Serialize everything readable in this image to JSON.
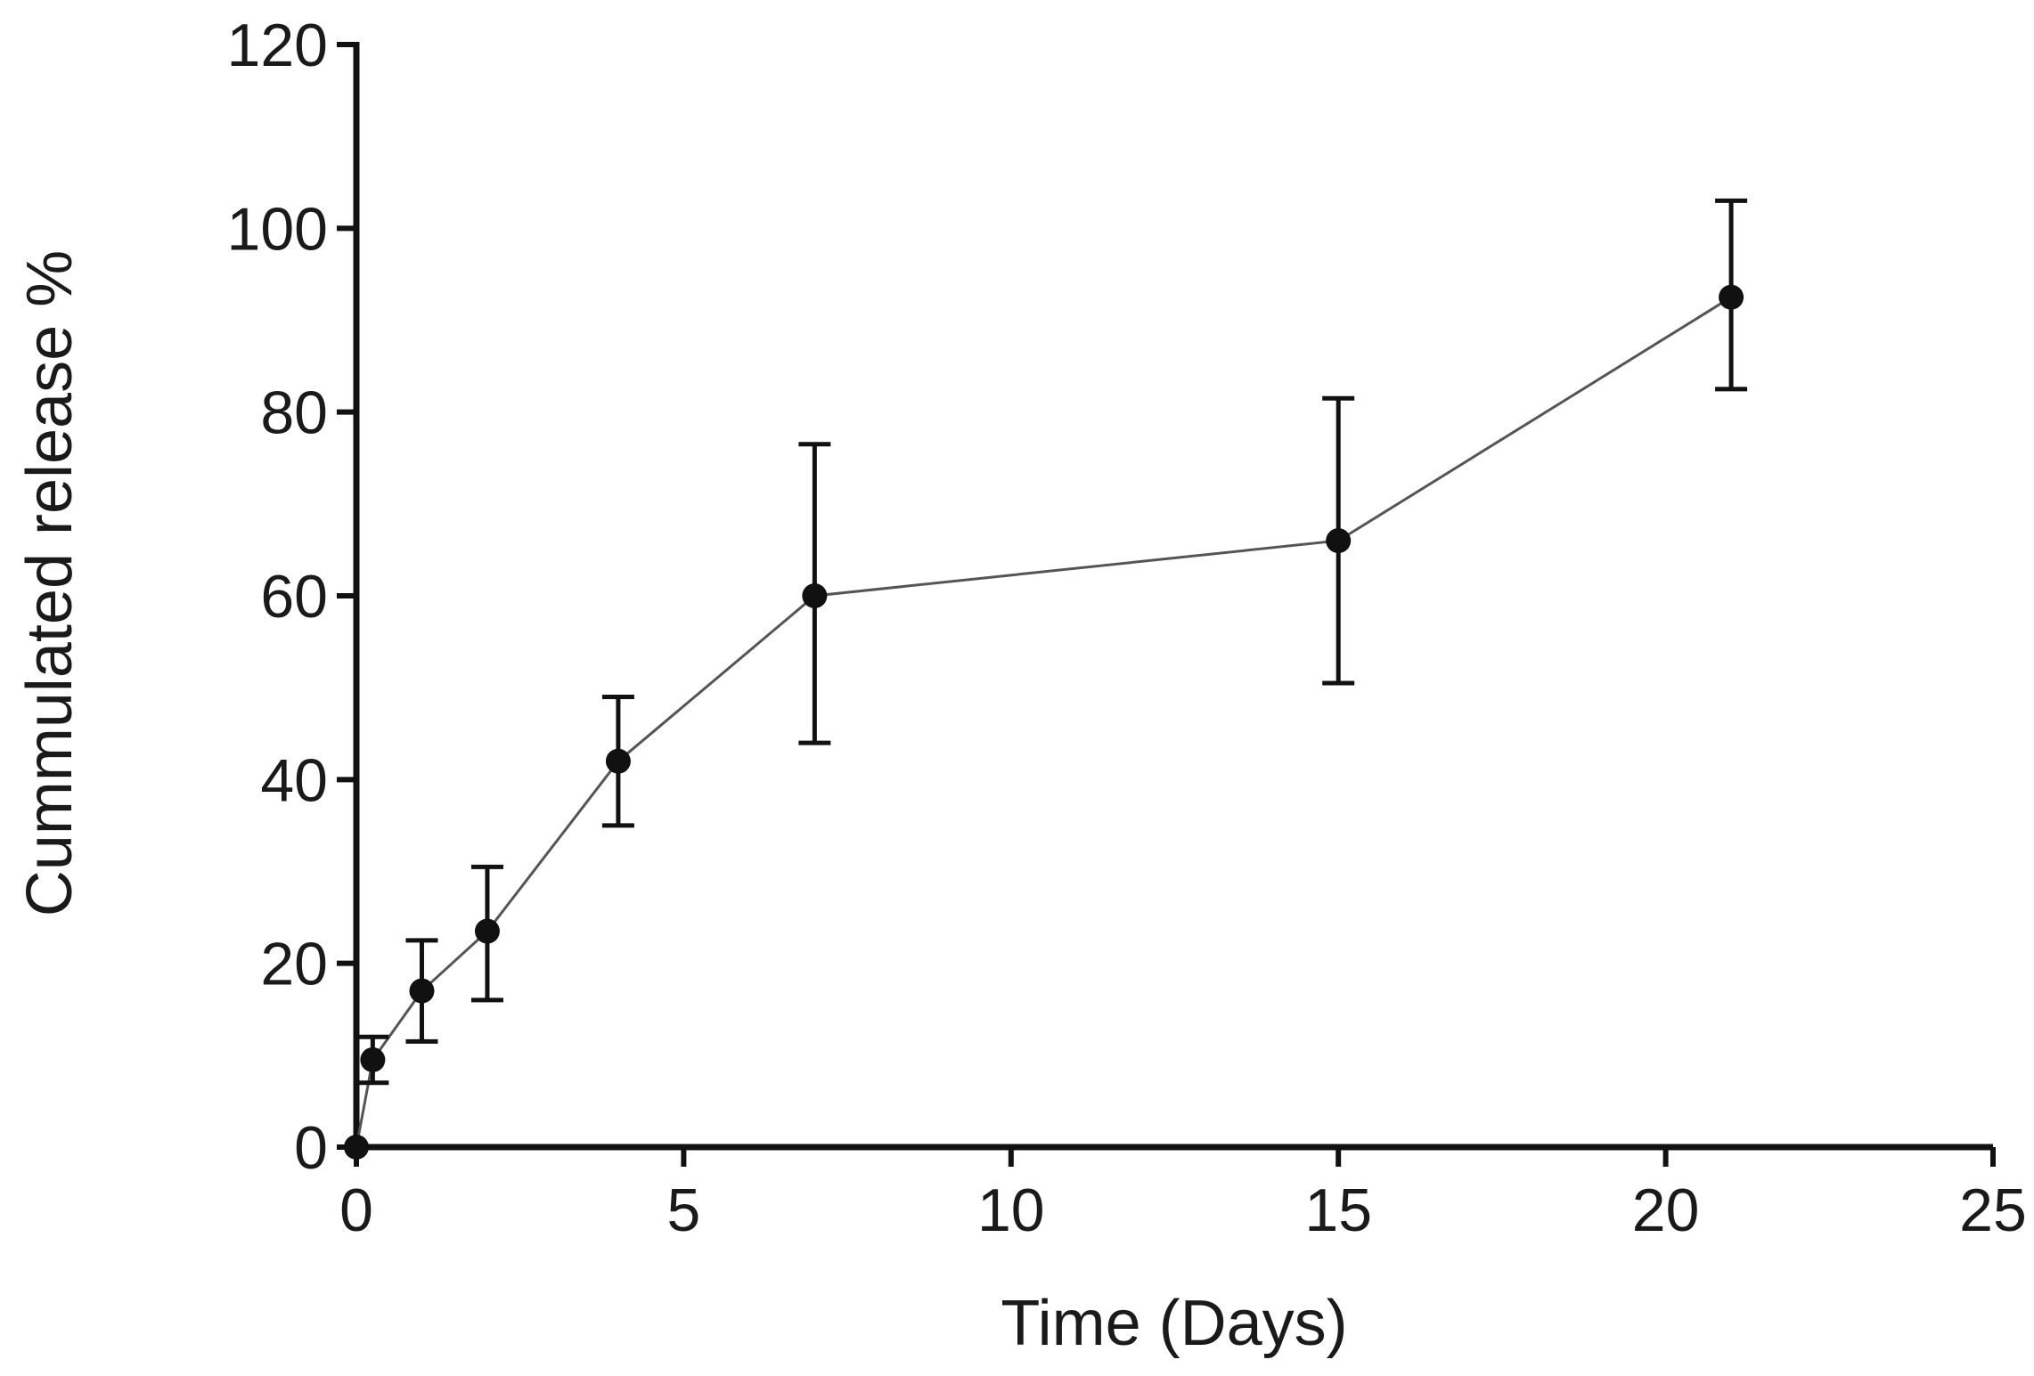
{
  "chart_data": {
    "type": "line",
    "title": "",
    "xlabel": "Time (Days)",
    "ylabel": "Cummulated release %",
    "xlim": [
      0,
      25
    ],
    "ylim": [
      0,
      120
    ],
    "xticks": [
      0,
      5,
      10,
      15,
      20,
      25
    ],
    "yticks": [
      0,
      20,
      40,
      60,
      80,
      100,
      120
    ],
    "xtick_labels": [
      "0",
      "5",
      "10",
      "15",
      "20",
      "25"
    ],
    "ytick_labels": [
      "0",
      "20",
      "40",
      "60",
      "80",
      "100",
      "120"
    ],
    "grid": false,
    "series": [
      {
        "name": "Cummulated release",
        "x": [
          0,
          0.25,
          1,
          2,
          4,
          7,
          15,
          21
        ],
        "y": [
          0,
          9.5,
          17,
          23.5,
          42,
          60,
          66,
          92.5
        ],
        "error_low": [
          0,
          7,
          11.5,
          16,
          35,
          44,
          50.5,
          82.5
        ],
        "error_high": [
          0,
          12,
          22.5,
          30.5,
          49,
          76.5,
          81.5,
          103
        ],
        "color": "#111111",
        "line_color": "#555555"
      }
    ]
  }
}
